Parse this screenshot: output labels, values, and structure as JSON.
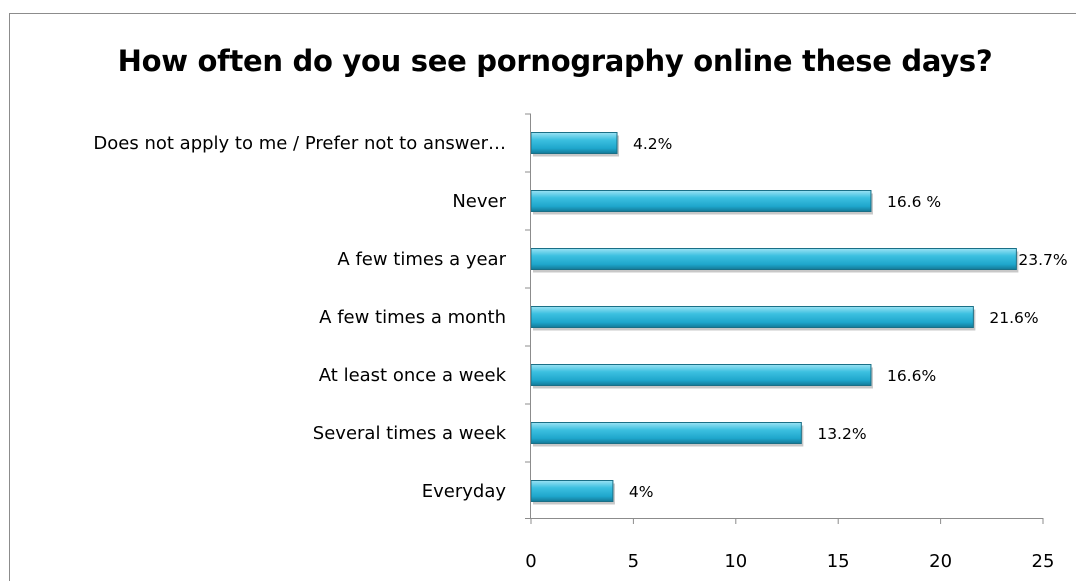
{
  "chart_data": {
    "type": "bar",
    "orientation": "horizontal",
    "title": "How often do you see pornography online these days?",
    "categories": [
      "Does not apply to me / Prefer not to answer…",
      "Never",
      "A few times a year",
      "A few times a month",
      "At least once a week",
      "Several times a week",
      "Everyday"
    ],
    "values": [
      4.2,
      16.6,
      23.7,
      21.6,
      16.6,
      13.2,
      4
    ],
    "value_labels": [
      "4.2%",
      "16.6 %",
      "23.7%",
      "21.6%",
      "16.6%",
      "13.2%",
      "4%"
    ],
    "xticks": [
      "0",
      "5",
      "10",
      "15",
      "20",
      "25"
    ],
    "xlim": [
      0,
      25
    ],
    "xlabel": "",
    "ylabel": "",
    "grid": false,
    "legend": "none",
    "bar_color": "#2fb4d6",
    "bar_edge_color": "#1a6f86"
  }
}
